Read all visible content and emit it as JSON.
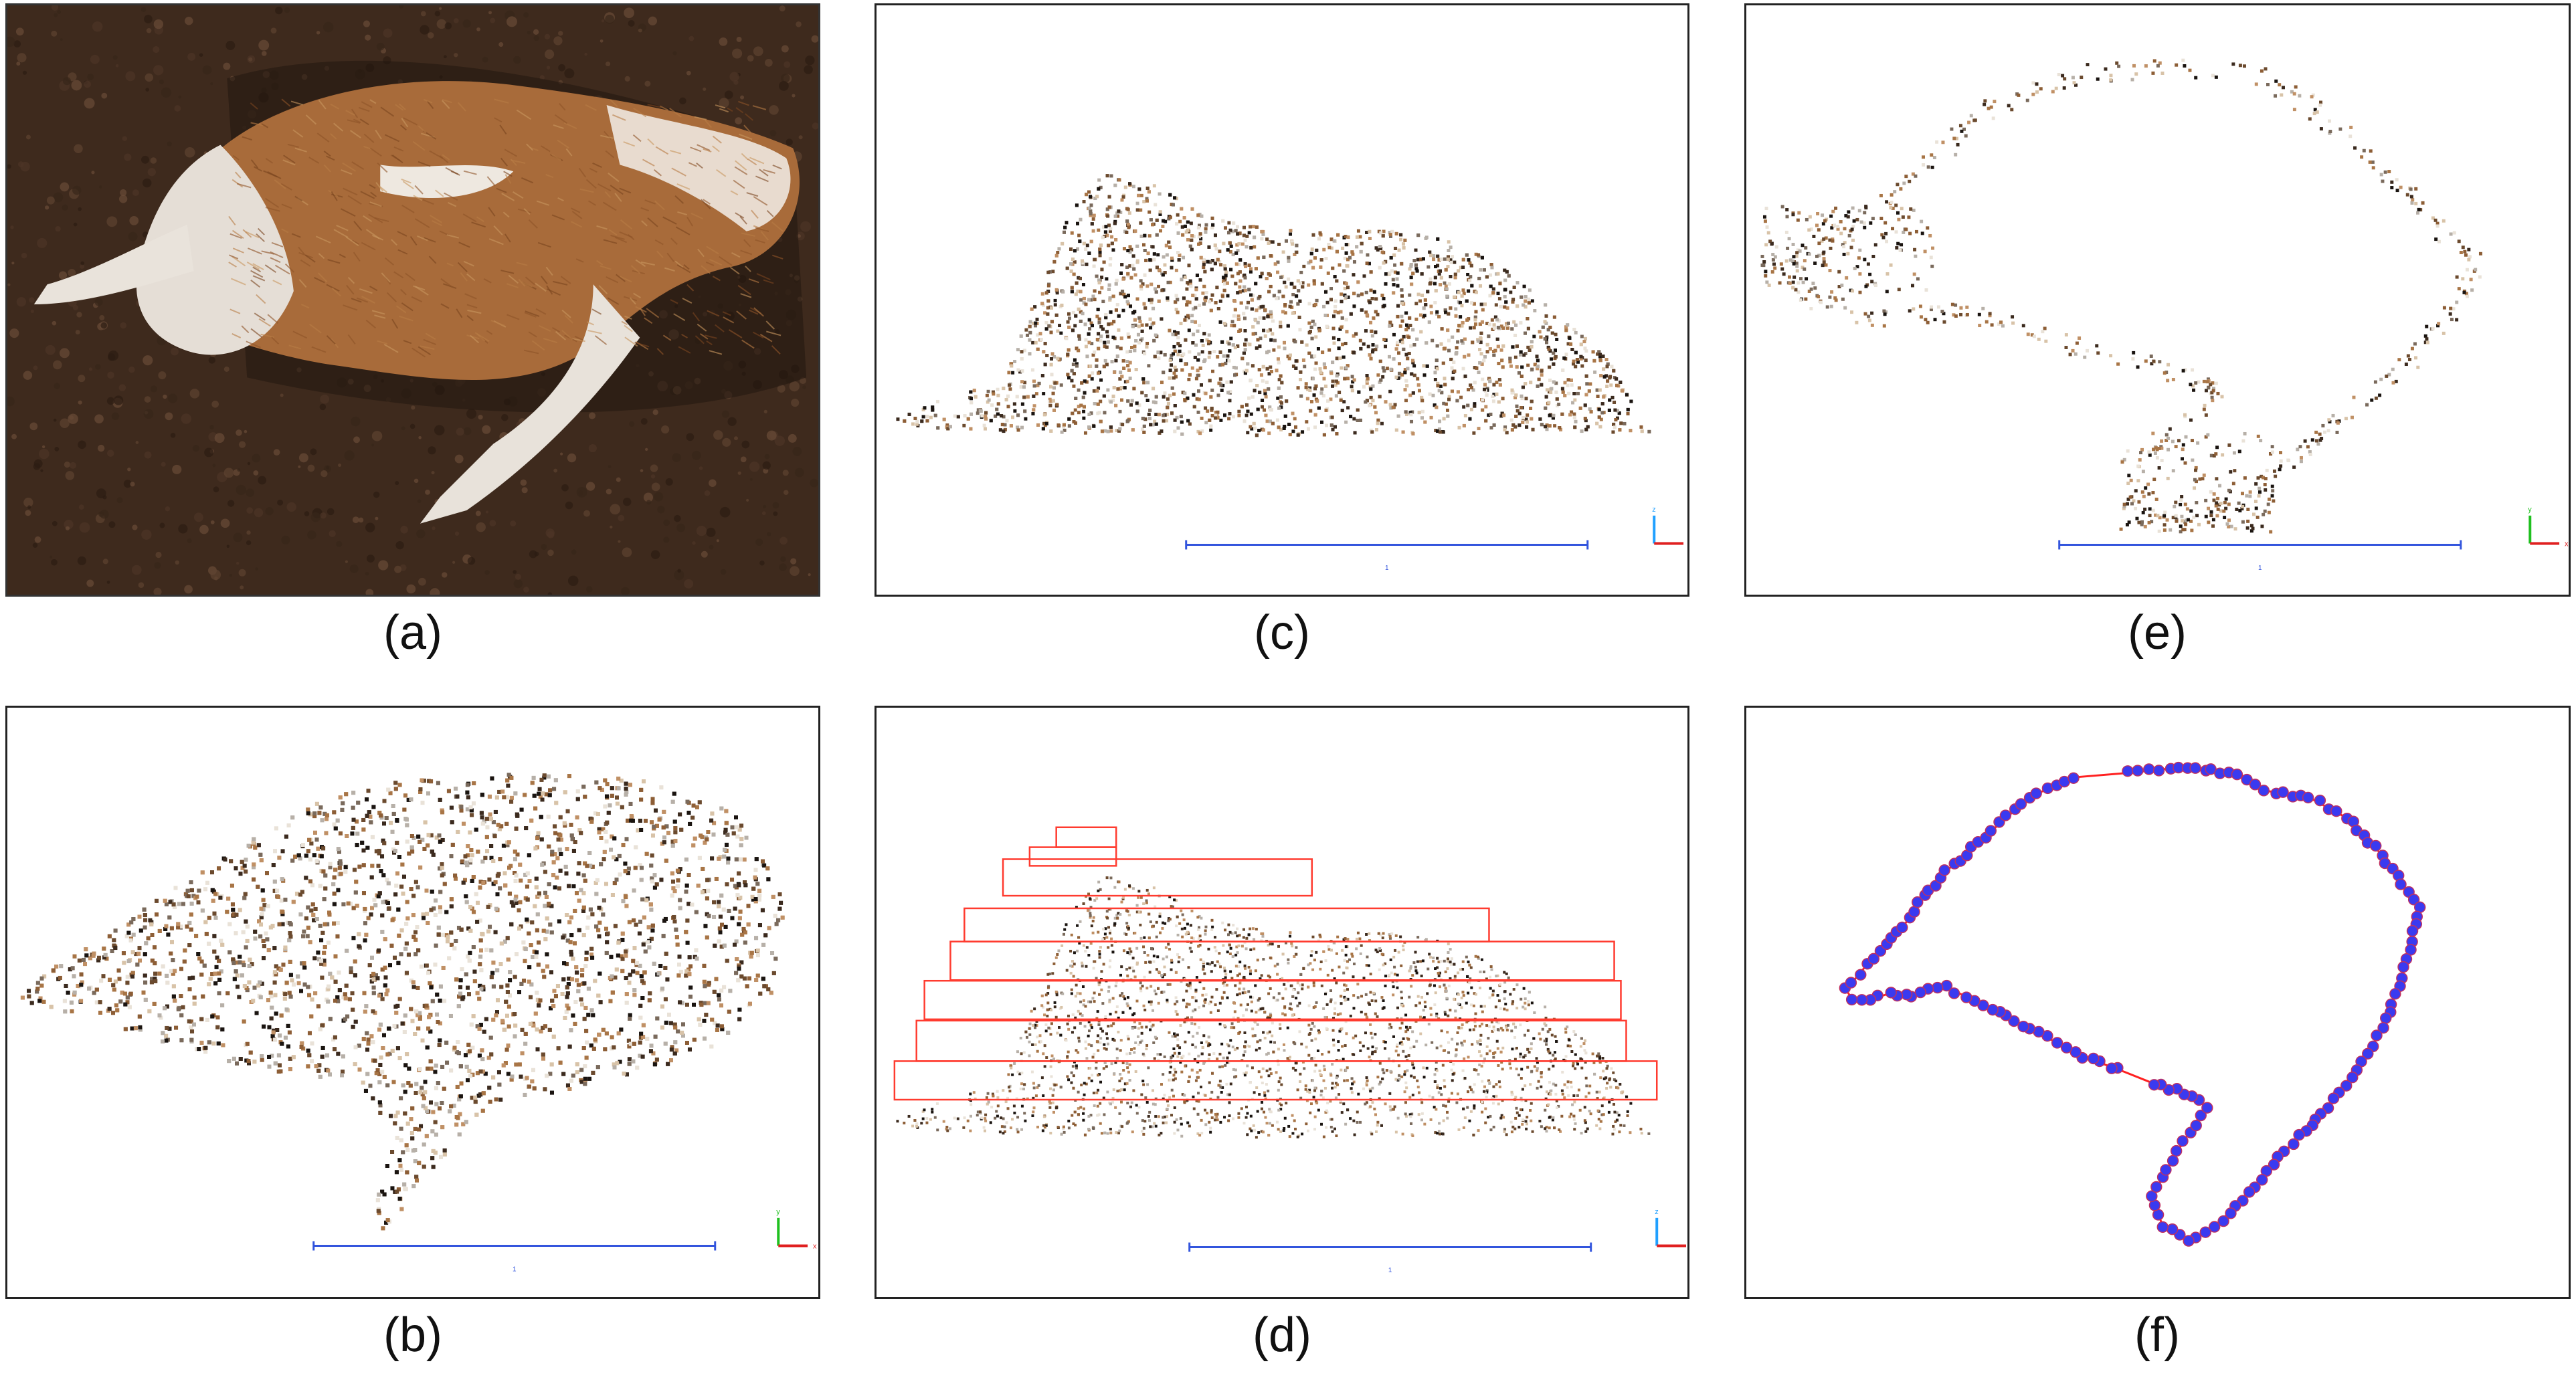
{
  "figure": {
    "panels": [
      {
        "id": "a",
        "label": "(a)",
        "content": "photo-top-view"
      },
      {
        "id": "b",
        "label": "(b)",
        "content": "point-cloud-top-view"
      },
      {
        "id": "c",
        "label": "(c)",
        "content": "point-cloud-side-view"
      },
      {
        "id": "d",
        "label": "(d)",
        "content": "side-view-height-slices"
      },
      {
        "id": "e",
        "label": "(e)",
        "content": "cross-section-slice"
      },
      {
        "id": "f",
        "label": "(f)",
        "content": "contour-fit"
      }
    ],
    "scale_bar_label": "1",
    "axis_labels": {
      "x": "x",
      "y": "y",
      "z": "z"
    },
    "colors": {
      "frame": "#222222",
      "scale_bar": "#3355dd",
      "axis_x": "#e02020",
      "axis_y": "#20c020",
      "axis_z": "#20a0ff",
      "slice_box": "#ff3b2f",
      "contour_line": "#ff2020",
      "contour_point": "#3a3af0",
      "soil": "#3e2a1d",
      "fur_brown": "#a86b3a",
      "fur_white": "#eee8e0"
    }
  }
}
